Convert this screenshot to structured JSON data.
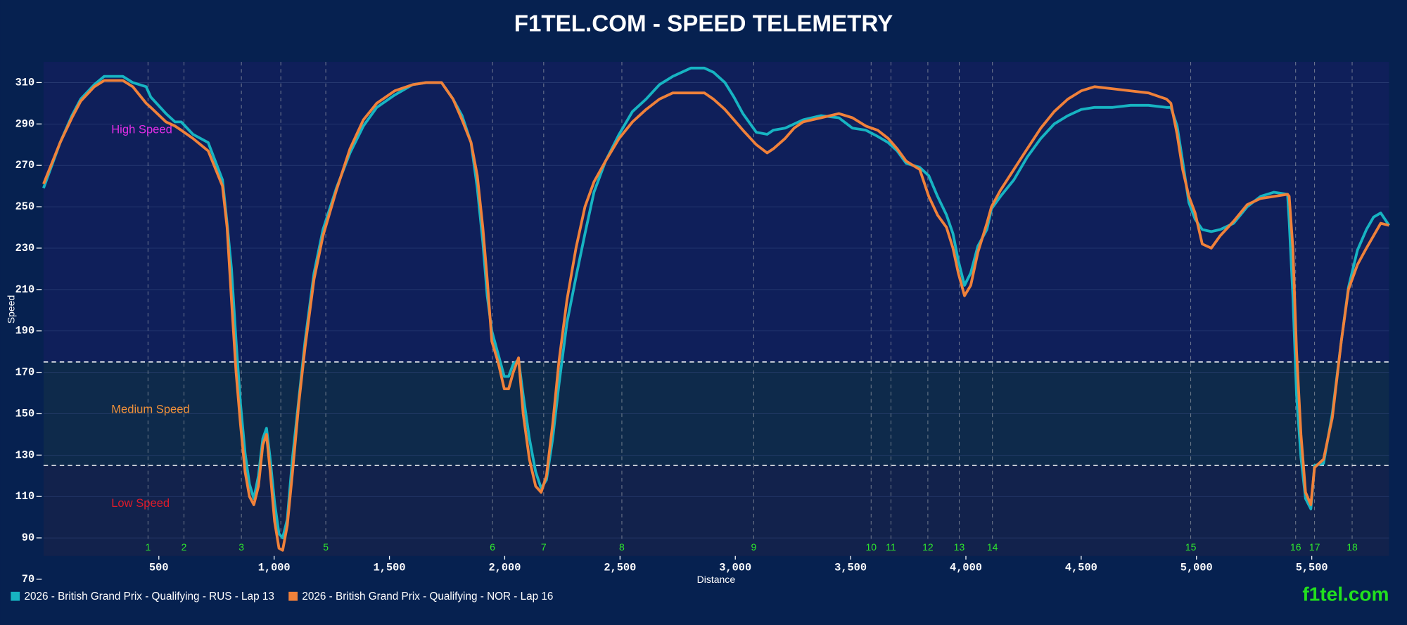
{
  "chart_data": {
    "type": "line",
    "title": "F1TEL.COM - SPEED TELEMETRY",
    "xlabel": "Distance",
    "ylabel": "Speed",
    "watermark": "f1tel.com",
    "xlim": [
      0,
      5835
    ],
    "ylim": [
      70,
      320
    ],
    "xticks": [
      500,
      {
        "value": 1000,
        "label": "1,000"
      },
      {
        "value": 1500,
        "label": "1,500"
      },
      {
        "value": 2000,
        "label": "2,000"
      },
      {
        "value": 2500,
        "label": "2,500"
      },
      {
        "value": 3000,
        "label": "3,000"
      },
      {
        "value": 3500,
        "label": "3,500"
      },
      {
        "value": 4000,
        "label": "4,000"
      },
      {
        "value": 4500,
        "label": "4,500"
      },
      {
        "value": 5000,
        "label": "5,000"
      },
      {
        "value": 5500,
        "label": "5,500"
      }
    ],
    "yticks": [
      70,
      90,
      110,
      130,
      150,
      170,
      190,
      210,
      230,
      250,
      270,
      290,
      310
    ],
    "grid": true,
    "thresholds": [
      125,
      175
    ],
    "zones": [
      {
        "label": "High Speed",
        "color": "#e22ee6",
        "fill": "#0f1f5a"
      },
      {
        "label": "Medium Speed",
        "color": "#f0913a",
        "fill": "#0e2a4b"
      },
      {
        "label": "Low Speed",
        "color": "#e01b2a",
        "fill": "#12224c"
      }
    ],
    "corners": {
      "labels": [
        "1",
        "2",
        "3",
        null,
        "5",
        "6",
        "7",
        "8",
        "9",
        "10",
        "11",
        "12",
        "13",
        "14",
        "15",
        "16",
        "17",
        "18"
      ],
      "x": [
        453,
        609,
        858,
        1029,
        1224,
        1947,
        2169,
        2508,
        3080,
        3589,
        3675,
        3835,
        3971,
        4115,
        4975,
        5430,
        5512,
        5675
      ],
      "color": "#2ee62e"
    },
    "legend": "bottom-left",
    "x": [
      0,
      72,
      123,
      161,
      220,
      263,
      344,
      387,
      445,
      465,
      531,
      570,
      597,
      648,
      714,
      776,
      796,
      815,
      835,
      854,
      874,
      893,
      912,
      932,
      951,
      967,
      982,
      1002,
      1021,
      1037,
      1057,
      1080,
      1107,
      1134,
      1173,
      1212,
      1270,
      1329,
      1387,
      1445,
      1523,
      1601,
      1660,
      1726,
      1776,
      1815,
      1854,
      1881,
      1905,
      1924,
      1944,
      1971,
      1998,
      2017,
      2037,
      2060,
      2080,
      2107,
      2134,
      2158,
      2181,
      2208,
      2235,
      2270,
      2309,
      2348,
      2387,
      2437,
      2496,
      2554,
      2613,
      2671,
      2729,
      2807,
      2866,
      2905,
      2955,
      2994,
      3033,
      3091,
      3138,
      3165,
      3216,
      3255,
      3294,
      3372,
      3449,
      3508,
      3566,
      3617,
      3663,
      3702,
      3741,
      3800,
      3839,
      3877,
      3916,
      3944,
      3967,
      3994,
      4021,
      4052,
      4091,
      4111,
      4150,
      4208,
      4266,
      4325,
      4383,
      4442,
      4500,
      4558,
      4636,
      4714,
      4792,
      4870,
      4889,
      4916,
      4940,
      4967,
      4994,
      5025,
      5064,
      5103,
      5161,
      5220,
      5278,
      5336,
      5395,
      5402,
      5418,
      5434,
      5453,
      5473,
      5496,
      5512,
      5551,
      5589,
      5628,
      5659,
      5698,
      5737,
      5768,
      5799,
      5835
    ],
    "series": [
      {
        "name": "2026 - British Grand Prix - Qualifying - RUS - Lap 13",
        "color": "#17b4c2",
        "values": [
          259,
          281,
          294,
          302,
          309,
          313,
          313,
          310,
          308,
          303,
          295,
          291,
          291,
          285,
          281,
          263,
          242,
          220,
          185,
          155,
          131,
          116,
          109,
          120,
          138,
          143,
          129,
          107,
          92,
          90,
          99,
          129,
          157,
          185,
          218,
          239,
          259,
          276,
          289,
          298,
          304,
          309,
          310,
          310,
          302,
          294,
          281,
          259,
          233,
          207,
          190,
          179,
          168,
          168,
          174,
          176,
          159,
          138,
          122,
          114,
          118,
          138,
          164,
          194,
          216,
          237,
          257,
          272,
          285,
          296,
          302,
          309,
          313,
          317,
          317,
          315,
          310,
          303,
          295,
          286,
          285,
          287,
          288,
          290,
          292,
          294,
          293,
          288,
          287,
          284,
          281,
          277,
          271,
          269,
          265,
          255,
          246,
          237,
          224,
          212,
          218,
          231,
          239,
          249,
          255,
          263,
          274,
          283,
          290,
          294,
          297,
          298,
          298,
          299,
          299,
          298,
          298,
          289,
          272,
          252,
          244,
          239,
          238,
          239,
          242,
          250,
          255,
          257,
          256,
          243,
          207,
          159,
          129,
          109,
          104,
          125,
          126,
          150,
          185,
          211,
          229,
          239,
          245,
          247,
          241
        ]
      },
      {
        "name": "2026 - British Grand Prix - Qualifying - NOR - Lap 16",
        "color": "#f0813a",
        "values": [
          261,
          281,
          293,
          301,
          308,
          311,
          311,
          308,
          300,
          298,
          291,
          289,
          287,
          283,
          277,
          260,
          240,
          205,
          170,
          145,
          122,
          110,
          106,
          115,
          135,
          140,
          123,
          98,
          85,
          84,
          96,
          122,
          155,
          182,
          215,
          236,
          258,
          278,
          292,
          300,
          306,
          309,
          310,
          310,
          302,
          292,
          281,
          265,
          240,
          215,
          185,
          175,
          162,
          162,
          170,
          177,
          150,
          128,
          115,
          112,
          120,
          145,
          175,
          205,
          230,
          250,
          262,
          272,
          283,
          291,
          297,
          302,
          305,
          305,
          305,
          302,
          297,
          292,
          287,
          280,
          276,
          278,
          283,
          288,
          291,
          293,
          295,
          293,
          289,
          287,
          283,
          278,
          272,
          268,
          255,
          246,
          240,
          230,
          218,
          207,
          212,
          228,
          242,
          250,
          258,
          268,
          278,
          288,
          296,
          302,
          306,
          308,
          307,
          306,
          305,
          302,
          300,
          285,
          268,
          255,
          247,
          232,
          230,
          236,
          243,
          251,
          254,
          255,
          256,
          255,
          230,
          180,
          140,
          112,
          106,
          124,
          128,
          148,
          185,
          210,
          222,
          230,
          236,
          242,
          241
        ]
      }
    ]
  }
}
